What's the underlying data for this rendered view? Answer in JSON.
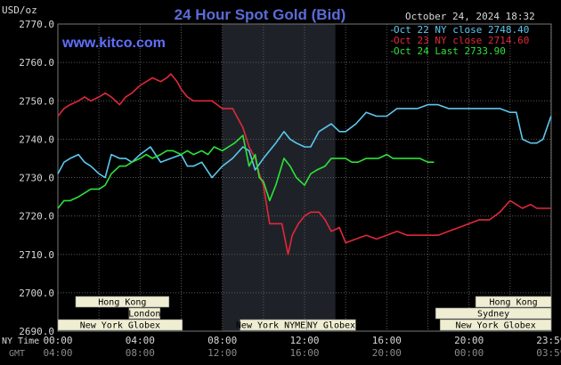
{
  "header": {
    "title": "24 Hour Spot Gold (Bid)",
    "date": "October 24, 2024 18:32",
    "unit": "USD/oz",
    "website": "www.kitco.com"
  },
  "colors": {
    "background": "#000000",
    "grid": "#5a5a5a",
    "title": "#5a6cd8",
    "website": "#6070ff",
    "oct22": "#5bc8ee",
    "oct23": "#e0283a",
    "oct24": "#2ee23a",
    "session_band": "#1e2228",
    "market_fill": "#f0eed2",
    "market_text": "#000000",
    "axis_text": "#d8d8d8",
    "gmt_text": "#8a8a8a"
  },
  "legend": [
    {
      "label": "Oct 22 NY close 2748.40",
      "series": "oct22"
    },
    {
      "label": "Oct 23 NY close 2714.60",
      "series": "oct23"
    },
    {
      "label": "Oct 24 Last 2733.90",
      "series": "oct24"
    }
  ],
  "time_rows": {
    "ny_label": "NY Time",
    "gmt_label": "GMT",
    "ny_ticks": [
      "00:00",
      "04:00",
      "08:00",
      "12:00",
      "16:00",
      "20:00",
      "23:59"
    ],
    "gmt_ticks": [
      "04:00",
      "08:00",
      "12:00",
      "16:00",
      "20:00",
      "00:00",
      "03:59"
    ]
  },
  "markets": [
    {
      "label": "Hong Kong",
      "row": 0,
      "start": 2.0,
      "end": 12.5
    },
    {
      "label": "London",
      "row": 1,
      "start": 8.0,
      "end": 11.5
    },
    {
      "label": "Hong Kong",
      "row": 0,
      "start": 47.0,
      "end": 55.5
    },
    {
      "label": "Sydney",
      "row": 1,
      "start": 42.5,
      "end": 55.5
    },
    {
      "label": "New York Globex",
      "row": 2,
      "start": 0.0,
      "end": 14.0
    },
    {
      "label": "New York NYMEX",
      "row": 2,
      "start": 20.5,
      "end": 28.0
    },
    {
      "label": "NY Globex",
      "row": 2,
      "start": 28.0,
      "end": 33.5
    },
    {
      "label": "New York Globex",
      "row": 2,
      "start": 43.0,
      "end": 55.5
    }
  ],
  "chart_data": {
    "type": "line",
    "title": "24 Hour Spot Gold (Bid)",
    "ylabel": "USD/oz",
    "xlabel": "NY Time",
    "x_unit": "hours since 00:00 NY time",
    "ylim": [
      2690,
      2770
    ],
    "yticks": [
      2690.0,
      2700.0,
      2710.0,
      2720.0,
      2730.0,
      2740.0,
      2750.0,
      2760.0,
      2770.0
    ],
    "xlim": [
      0,
      24
    ],
    "shaded_session": [
      8.0,
      13.5
    ],
    "grid": true,
    "series": [
      {
        "name": "Oct 22 NY close 2748.40",
        "color": "#5bc8ee",
        "x": [
          0,
          0.3,
          0.6,
          1.0,
          1.3,
          1.6,
          2.0,
          2.3,
          2.6,
          3.0,
          3.3,
          3.6,
          4.0,
          4.5,
          5.0,
          5.5,
          6.0,
          6.3,
          6.6,
          7.0,
          7.5,
          8.0,
          8.5,
          9.0,
          9.3,
          9.6,
          10.0,
          10.3,
          10.6,
          11.0,
          11.3,
          11.6,
          12.0,
          12.3,
          12.7,
          13.0,
          13.3,
          13.7,
          14.0,
          14.5,
          15.0,
          15.5,
          16.0,
          16.5,
          17.0,
          17.5,
          18.0,
          18.5,
          19.0,
          19.5,
          20.0,
          20.5,
          21.0,
          21.5,
          22.0,
          22.3,
          22.6,
          23.0,
          23.3,
          23.6,
          23.99
        ],
        "y": [
          2731,
          2734,
          2735,
          2736,
          2734,
          2733,
          2731,
          2730,
          2736,
          2735,
          2735,
          2734,
          2736,
          2738,
          2734,
          2735,
          2736,
          2733,
          2733,
          2734,
          2730,
          2733,
          2735,
          2738,
          2737,
          2732,
          2735,
          2737,
          2739,
          2742,
          2740,
          2739,
          2738,
          2738,
          2742,
          2743,
          2744,
          2742,
          2742,
          2744,
          2747,
          2746,
          2746,
          2748,
          2748,
          2748,
          2749,
          2749,
          2748,
          2748,
          2748,
          2748,
          2748,
          2748,
          2747,
          2747,
          2740,
          2739,
          2739,
          2740,
          2746
        ]
      },
      {
        "name": "Oct 23 NY close 2714.60",
        "color": "#e0283a",
        "x": [
          0,
          0.3,
          0.6,
          1.0,
          1.3,
          1.6,
          2.0,
          2.3,
          2.6,
          3.0,
          3.3,
          3.6,
          4.0,
          4.3,
          4.6,
          5.0,
          5.3,
          5.5,
          5.8,
          6.0,
          6.3,
          6.6,
          7.0,
          7.5,
          8.0,
          8.5,
          9.0,
          9.3,
          9.6,
          9.8,
          10.0,
          10.3,
          10.6,
          10.9,
          11.2,
          11.4,
          11.7,
          12.0,
          12.3,
          12.7,
          13.0,
          13.3,
          13.7,
          14.0,
          14.5,
          15.0,
          15.5,
          16.0,
          16.5,
          17.0,
          17.5,
          18.0,
          18.5,
          19.0,
          19.5,
          20.0,
          20.5,
          21.0,
          21.5,
          22.0,
          22.3,
          22.6,
          23.0,
          23.3,
          23.6,
          23.99
        ],
        "y": [
          2746,
          2748,
          2749,
          2750,
          2751,
          2750,
          2751,
          2752,
          2751,
          2749,
          2751,
          2752,
          2754,
          2755,
          2756,
          2755,
          2756,
          2757,
          2755,
          2753,
          2751,
          2750,
          2750,
          2750,
          2748,
          2748,
          2743,
          2738,
          2735,
          2731,
          2728,
          2718,
          2718,
          2718,
          2710,
          2715,
          2718,
          2720,
          2721,
          2721,
          2719,
          2716,
          2717,
          2713,
          2714,
          2715,
          2714,
          2715,
          2716,
          2715,
          2715,
          2715,
          2715,
          2716,
          2717,
          2718,
          2719,
          2719,
          2721,
          2724,
          2723,
          2722,
          2723,
          2722,
          2722,
          2722
        ]
      },
      {
        "name": "Oct 24 Last 2733.90",
        "color": "#2ee23a",
        "x": [
          0,
          0.3,
          0.6,
          1.0,
          1.3,
          1.6,
          2.0,
          2.3,
          2.6,
          3.0,
          3.3,
          3.6,
          4.0,
          4.3,
          4.6,
          5.0,
          5.3,
          5.6,
          6.0,
          6.3,
          6.6,
          7.0,
          7.3,
          7.6,
          8.0,
          8.3,
          8.6,
          9.0,
          9.3,
          9.6,
          9.8,
          10.0,
          10.3,
          10.6,
          11.0,
          11.3,
          11.6,
          12.0,
          12.3,
          12.6,
          13.0,
          13.3,
          13.6,
          14.0,
          14.3,
          14.6,
          15.0,
          15.3,
          15.6,
          16.0,
          16.3,
          16.6,
          17.0,
          17.3,
          17.6,
          18.0,
          18.3
        ],
        "y": [
          2722,
          2724,
          2724,
          2725,
          2726,
          2727,
          2727,
          2728,
          2731,
          2733,
          2733,
          2734,
          2735,
          2736,
          2735,
          2736,
          2737,
          2737,
          2736,
          2737,
          2736,
          2737,
          2736,
          2738,
          2737,
          2738,
          2739,
          2741,
          2733,
          2736,
          2730,
          2729,
          2724,
          2728,
          2735,
          2733,
          2730,
          2728,
          2731,
          2732,
          2733,
          2735,
          2735,
          2735,
          2734,
          2734,
          2735,
          2735,
          2735,
          2736,
          2735,
          2735,
          2735,
          2735,
          2735,
          2734,
          2734
        ]
      }
    ]
  }
}
